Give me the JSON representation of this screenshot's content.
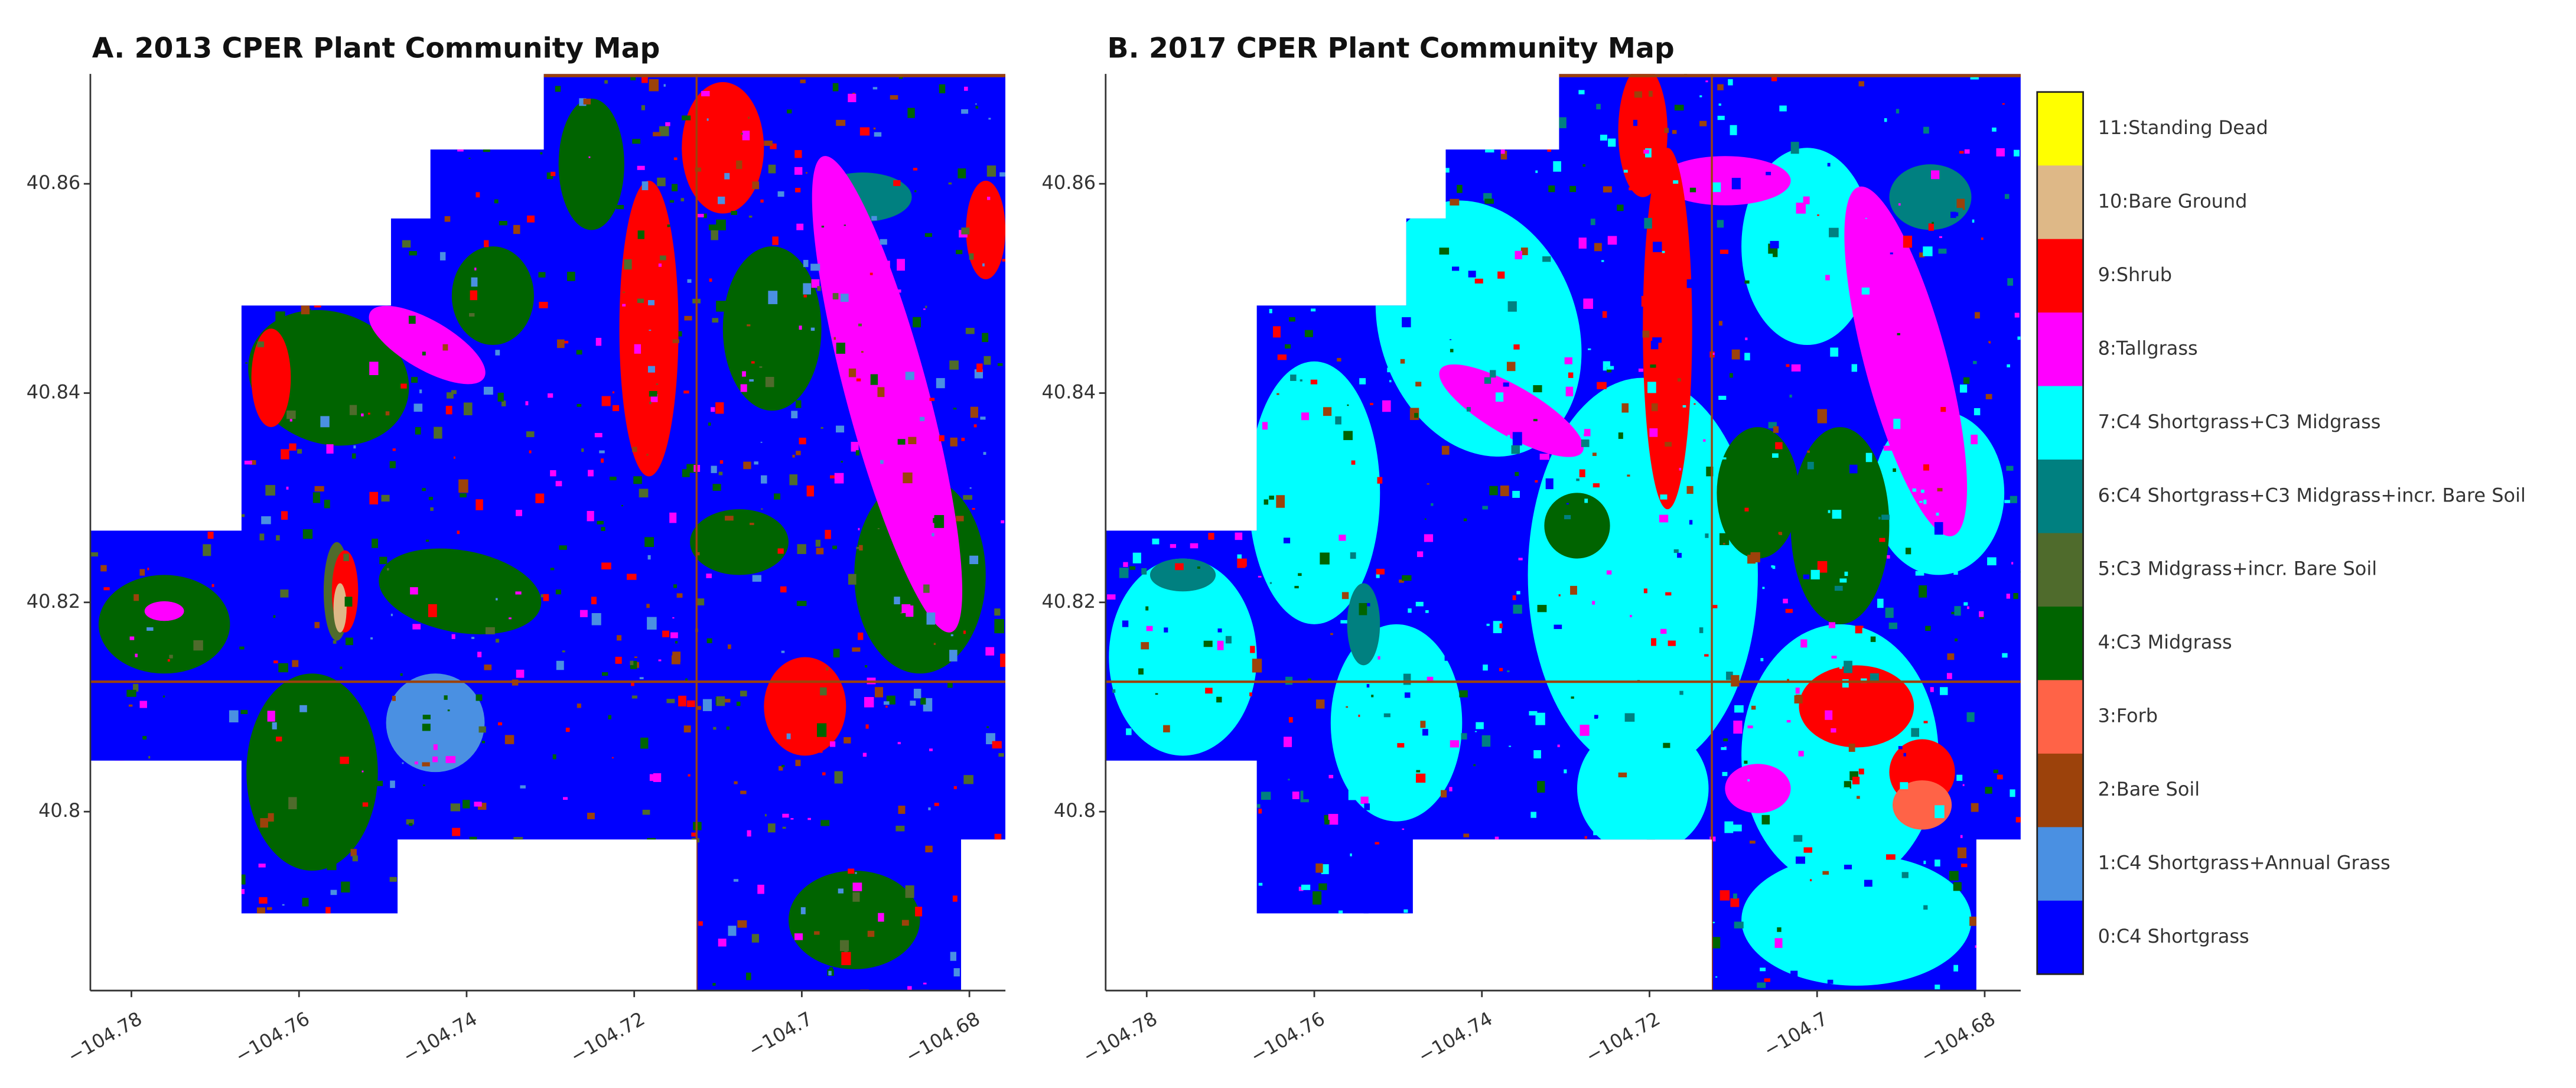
{
  "panels": [
    {
      "title": "A. 2013 CPER Plant Community Map",
      "xlim": [
        -104.7849,
        -104.6757
      ],
      "ylim": [
        40.7829,
        40.8705
      ],
      "xticks": [
        {
          "value": -104.78,
          "label": "−104.78"
        },
        {
          "value": -104.76,
          "label": "−104.76"
        },
        {
          "value": -104.74,
          "label": "−104.74"
        },
        {
          "value": -104.72,
          "label": "−104.72"
        },
        {
          "value": -104.7,
          "label": "−104.7"
        },
        {
          "value": -104.68,
          "label": "−104.68"
        }
      ],
      "yticks": [
        40.8,
        40.82,
        40.84,
        40.86
      ]
    },
    {
      "title": "B. 2017 CPER Plant Community Map",
      "xlim": [
        -104.7849,
        -104.6757
      ],
      "ylim": [
        40.7829,
        40.8705
      ],
      "xticks": [
        {
          "value": -104.78,
          "label": "−104.78"
        },
        {
          "value": -104.76,
          "label": "−104.76"
        },
        {
          "value": -104.74,
          "label": "−104.74"
        },
        {
          "value": -104.72,
          "label": "−104.72"
        },
        {
          "value": -104.7,
          "label": "−104.7"
        },
        {
          "value": -104.68,
          "label": "−104.68"
        }
      ],
      "yticks": [
        40.8,
        40.82,
        40.84,
        40.86
      ]
    }
  ],
  "legend": {
    "classes": [
      {
        "label": "11:Standing Dead",
        "color": "#ffff00"
      },
      {
        "label": "10:Bare Ground",
        "color": "#deb887"
      },
      {
        "label": "9:Shrub",
        "color": "#ff0000"
      },
      {
        "label": "8:Tallgrass",
        "color": "#ff00ff"
      },
      {
        "label": "7:C4 Shortgrass+C3 Midgrass",
        "color": "#00ffff"
      },
      {
        "label": "6:C4 Shortgrass+C3 Midgrass+incr. Bare Soil",
        "color": "#008080"
      },
      {
        "label": "5:C3 Midgrass+incr. Bare Soil",
        "color": "#4f6b2c"
      },
      {
        "label": "4:C3 Midgrass",
        "color": "#006400"
      },
      {
        "label": "3:Forb",
        "color": "#ff6347"
      },
      {
        "label": "2:Bare Soil",
        "color": "#9c420b"
      },
      {
        "label": "1:C4 Shortgrass+Annual Grass",
        "color": "#4a90e2"
      },
      {
        "label": "0:C4 Shortgrass",
        "color": "#0000ff"
      }
    ]
  }
}
